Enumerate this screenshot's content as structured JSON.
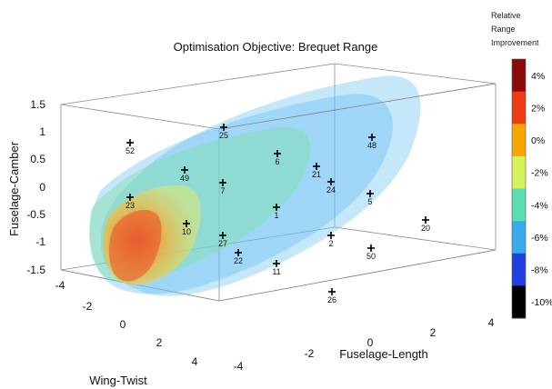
{
  "chart_data": {
    "type": "scatter",
    "title": "Optimisation Objective: Brequet Range",
    "axes": {
      "x": {
        "label": "Wing-Twist",
        "ticks": [
          "-4",
          "-2",
          "0",
          "2",
          "4"
        ]
      },
      "y": {
        "label": "Fuselage-Length",
        "ticks": [
          "-4",
          "-2",
          "0",
          "2",
          "4"
        ]
      },
      "z": {
        "label": "Fuselage-Camber",
        "ticks": [
          "1.5",
          "1",
          "0.5",
          "0",
          "-0.5",
          "-1",
          "-1.5"
        ]
      }
    },
    "colorbar": {
      "title_lines": [
        "Relative",
        "Range",
        "Improvement"
      ],
      "ticks": [
        "4%",
        "2%",
        "0%",
        "-2%",
        "-4%",
        "-6%",
        "-8%",
        "-10%"
      ],
      "colors": [
        "#8b0a0a",
        "#f03a10",
        "#f7a600",
        "#d6f25a",
        "#58e0b0",
        "#3aaaf0",
        "#1f3fe0",
        "#000000"
      ]
    },
    "points": [
      {
        "label": "52",
        "value": "52"
      },
      {
        "label": "25",
        "value": "25"
      },
      {
        "label": "49",
        "value": "49"
      },
      {
        "label": "7",
        "value": "7"
      },
      {
        "label": "6",
        "value": "6"
      },
      {
        "label": "21",
        "value": "21"
      },
      {
        "label": "48",
        "value": "48"
      },
      {
        "label": "24",
        "value": "24"
      },
      {
        "label": "23",
        "value": "23"
      },
      {
        "label": "10",
        "value": "10"
      },
      {
        "label": "1",
        "value": "1"
      },
      {
        "label": "5",
        "value": "5"
      },
      {
        "label": "20",
        "value": "20"
      },
      {
        "label": "27",
        "value": "27"
      },
      {
        "label": "22",
        "value": "22"
      },
      {
        "label": "2",
        "value": "2"
      },
      {
        "label": "50",
        "value": "50"
      },
      {
        "label": "11",
        "value": "11"
      },
      {
        "label": "26",
        "value": "26"
      }
    ]
  }
}
